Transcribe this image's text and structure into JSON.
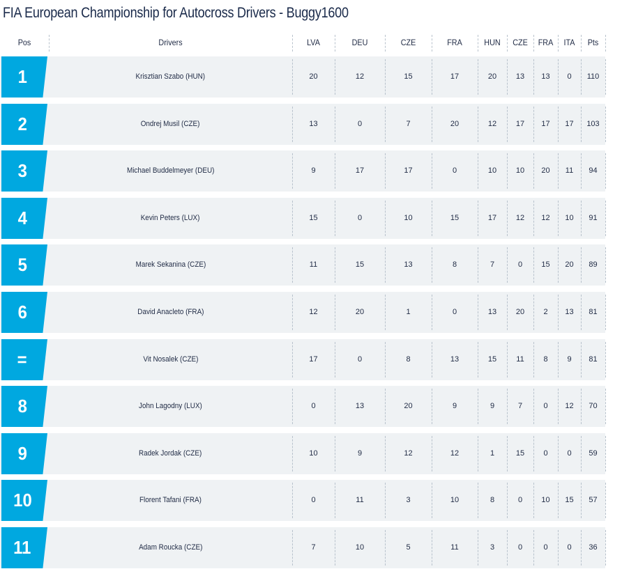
{
  "title": "FIA European Championship for Autocross Drivers - Buggy1600",
  "header": {
    "pos": "Pos",
    "drivers": "Drivers",
    "rounds": [
      "LVA",
      "DEU",
      "CZE",
      "FRA",
      "HUN",
      "CZE",
      "FRA",
      "ITA"
    ],
    "pts": "Pts"
  },
  "rows": [
    {
      "pos": "1",
      "driver": "Krisztian Szabo (HUN)",
      "scores": [
        "20",
        "12",
        "15",
        "17",
        "20",
        "13",
        "13",
        "0"
      ],
      "pts": "110"
    },
    {
      "pos": "2",
      "driver": "Ondrej Musil (CZE)",
      "scores": [
        "13",
        "0",
        "7",
        "20",
        "12",
        "17",
        "17",
        "17"
      ],
      "pts": "103"
    },
    {
      "pos": "3",
      "driver": "Michael Buddelmeyer (DEU)",
      "scores": [
        "9",
        "17",
        "17",
        "0",
        "10",
        "10",
        "20",
        "11"
      ],
      "pts": "94"
    },
    {
      "pos": "4",
      "driver": "Kevin Peters (LUX)",
      "scores": [
        "15",
        "0",
        "10",
        "15",
        "17",
        "12",
        "12",
        "10"
      ],
      "pts": "91"
    },
    {
      "pos": "5",
      "driver": "Marek Sekanina (CZE)",
      "scores": [
        "11",
        "15",
        "13",
        "8",
        "7",
        "0",
        "15",
        "20"
      ],
      "pts": "89"
    },
    {
      "pos": "6",
      "driver": "David Anacleto (FRA)",
      "scores": [
        "12",
        "20",
        "1",
        "0",
        "13",
        "20",
        "2",
        "13"
      ],
      "pts": "81"
    },
    {
      "pos": "=",
      "driver": "Vit Nosalek (CZE)",
      "scores": [
        "17",
        "0",
        "8",
        "13",
        "15",
        "11",
        "8",
        "9"
      ],
      "pts": "81"
    },
    {
      "pos": "8",
      "driver": "John Lagodny (LUX)",
      "scores": [
        "0",
        "13",
        "20",
        "9",
        "9",
        "7",
        "0",
        "12"
      ],
      "pts": "70"
    },
    {
      "pos": "9",
      "driver": "Radek Jordak (CZE)",
      "scores": [
        "10",
        "9",
        "12",
        "12",
        "1",
        "15",
        "0",
        "0"
      ],
      "pts": "59"
    },
    {
      "pos": "10",
      "driver": "Florent Tafani (FRA)",
      "scores": [
        "0",
        "11",
        "3",
        "10",
        "8",
        "0",
        "10",
        "15"
      ],
      "pts": "57"
    },
    {
      "pos": "11",
      "driver": "Adam Roucka (CZE)",
      "scores": [
        "7",
        "10",
        "5",
        "11",
        "3",
        "0",
        "0",
        "0"
      ],
      "pts": "36"
    }
  ],
  "colors": {
    "accent": "#00a8e0",
    "row_bg": "#eff2f4",
    "text": "#1f2a44"
  }
}
